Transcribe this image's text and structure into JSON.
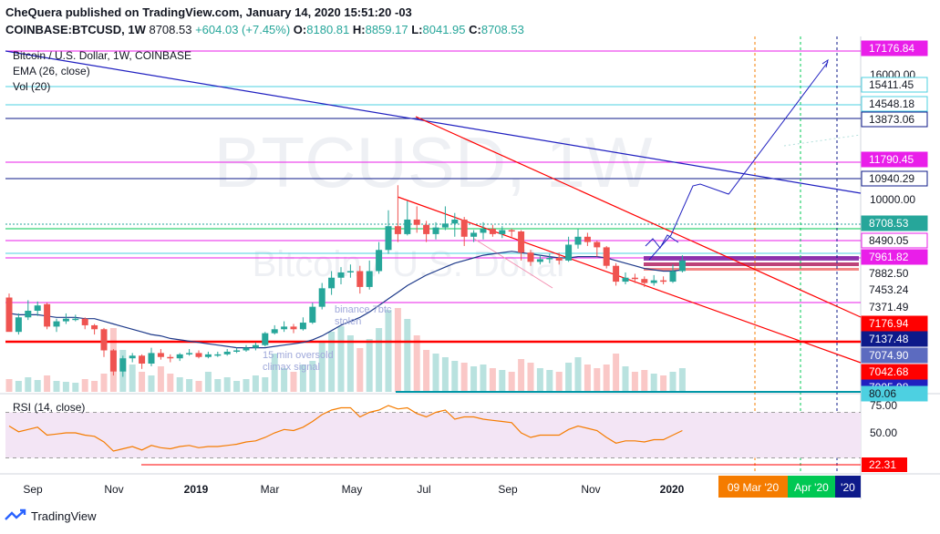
{
  "header": {
    "publisher_line": "CheQuera published on TradingView.com, January 14, 2020 15:51:20 -03",
    "symbol": "COINBASE:BTCUSD, 1W",
    "last": "8708.53",
    "change": "+604.03 (+7.45%)",
    "ohlc": [
      {
        "k": "O:",
        "v": "8180.81"
      },
      {
        "k": "H:",
        "v": "8859.17"
      },
      {
        "k": "L:",
        "v": "8041.95"
      },
      {
        "k": "C:",
        "v": "8708.53"
      }
    ]
  },
  "legend": {
    "title": "Bitcoin / U.S. Dollar, 1W, COINBASE",
    "ema": "EMA (26, close)",
    "vol": "Vol (20)",
    "rsi": "RSI (14, close)"
  },
  "watermark": {
    "big": "BTCUSD, 1W",
    "small": "Bitcoin / U.S. Dollar"
  },
  "annotations": {
    "binance": "binance 7btc\nstolen",
    "oversold": "15 min oversold\nclimax signal"
  },
  "footer": {
    "brand": "TradingView"
  },
  "colors": {
    "up": "#26a69a",
    "down": "#ef5350",
    "ema": "#1e3a8a",
    "magenta": "#e91ee9",
    "cyan": "#4dd0e1",
    "navy": "#0d1a8a",
    "red": "#ff0000",
    "blue_line": "#2020c0",
    "rsi_line": "#f57c00",
    "rsi_band": "#f3e5f5"
  },
  "chart_data": {
    "type": "line",
    "title": "Bitcoin / U.S. Dollar, 1W, COINBASE",
    "xlabel": "",
    "ylabel": "",
    "x_ticks": [
      "Sep",
      "Nov",
      "2019",
      "Mar",
      "May",
      "Jul",
      "Sep",
      "Nov",
      "2020"
    ],
    "price_ticks": [
      "16000.00",
      "10000.00"
    ],
    "price_labels": [
      {
        "value": "17176.84",
        "color": "#e91ee9",
        "text": "#ffffff"
      },
      {
        "value": "15411.45",
        "color": "#ffffff",
        "text": "#131722",
        "border": "#4dd0e1"
      },
      {
        "value": "14548.18",
        "color": "#ffffff",
        "text": "#131722",
        "border": "#4dd0e1"
      },
      {
        "value": "13873.06",
        "color": "#ffffff",
        "text": "#131722",
        "border": "#0d1a8a"
      },
      {
        "value": "11790.45",
        "color": "#e91ee9",
        "text": "#ffffff"
      },
      {
        "value": "10940.29",
        "color": "#ffffff",
        "text": "#131722",
        "border": "#0d1a8a"
      },
      {
        "value": "8708.53",
        "color": "#26a69a",
        "text": "#ffffff"
      },
      {
        "value": "8490.05",
        "color": "#ffffff",
        "text": "#131722",
        "border": "#e91ee9"
      },
      {
        "value": "7961.82",
        "color": "#e91ee9",
        "text": "#ffffff"
      },
      {
        "value": "7882.50",
        "color": "#ffffff",
        "text": "#131722"
      },
      {
        "value": "7453.24",
        "color": "#ffffff",
        "text": "#131722"
      },
      {
        "value": "7371.49",
        "color": "#ffffff",
        "text": "#131722"
      },
      {
        "value": "7176.94",
        "color": "#ff0000",
        "text": "#ffffff"
      },
      {
        "value": "7137.48",
        "color": "#0d1a8a",
        "text": "#ffffff"
      },
      {
        "value": "7074.90",
        "color": "#5c6bc0",
        "text": "#ffffff"
      },
      {
        "value": "7042.68",
        "color": "#ff0000",
        "text": "#ffffff"
      },
      {
        "value": "7005.98",
        "color": "#2020c0",
        "text": "#ffffff"
      },
      {
        "value": "80.06",
        "color": "#4dd0e1",
        "text": "#131722"
      }
    ],
    "rsi_ticks": [
      "75.00",
      "50.00"
    ],
    "rsi_label": {
      "value": "22.31",
      "color": "#ff0000",
      "text": "#ffffff"
    },
    "date_tags": [
      {
        "label": "09 Mar '20",
        "color": "#f57c00"
      },
      {
        "label": "Apr '20",
        "color": "#00c853"
      },
      {
        "label": "'20",
        "color": "#0d1a8a"
      }
    ],
    "candles": [
      [
        3.0,
        0.4,
        3.3,
        2.8
      ],
      [
        0.4,
        1.5,
        1.8,
        0.2
      ],
      [
        1.5,
        2.0,
        2.8,
        1.3
      ],
      [
        2.0,
        2.4,
        2.7,
        1.6
      ],
      [
        2.5,
        0.8,
        2.6,
        0.6
      ],
      [
        0.8,
        1.2,
        1.4,
        0.4
      ],
      [
        1.2,
        1.4,
        1.8,
        1.0
      ],
      [
        1.4,
        1.4,
        1.7,
        1.2
      ],
      [
        1.4,
        0.9,
        1.5,
        0.6
      ],
      [
        0.9,
        0.6,
        1.0,
        0.2
      ],
      [
        0.6,
        -1.0,
        0.7,
        -1.5
      ],
      [
        -1.0,
        -2.6,
        -0.9,
        -2.9
      ],
      [
        -2.6,
        -1.6,
        -1.4,
        -3.0
      ],
      [
        -1.6,
        -1.4,
        -1.2,
        -1.9
      ],
      [
        -1.4,
        -2.0,
        -1.3,
        -2.4
      ],
      [
        -2.0,
        -1.2,
        -0.8,
        -2.2
      ],
      [
        -1.2,
        -1.5,
        -0.9,
        -1.7
      ],
      [
        -1.5,
        -1.6,
        -1.3,
        -1.9
      ],
      [
        -1.6,
        -1.3,
        -1.2,
        -1.8
      ],
      [
        -1.3,
        -1.2,
        -0.9,
        -1.4
      ],
      [
        -1.2,
        -1.5,
        -1.0,
        -1.6
      ],
      [
        -1.5,
        -1.3,
        -1.1,
        -1.6
      ],
      [
        -1.3,
        -1.3,
        -1.1,
        -1.5
      ],
      [
        -1.3,
        -1.1,
        -0.9,
        -1.4
      ],
      [
        -1.1,
        -1.0,
        -0.8,
        -1.2
      ],
      [
        -1.0,
        -0.8,
        -0.6,
        -1.1
      ],
      [
        -0.8,
        -0.6,
        -0.4,
        -1.0
      ],
      [
        -0.6,
        0.3,
        0.4,
        -0.7
      ],
      [
        0.3,
        0.6,
        0.9,
        0.2
      ],
      [
        0.6,
        0.8,
        1.2,
        0.4
      ],
      [
        0.8,
        0.6,
        1.0,
        0.3
      ],
      [
        0.6,
        1.1,
        1.5,
        0.5
      ],
      [
        1.1,
        2.3,
        2.6,
        1.0
      ],
      [
        2.3,
        3.7,
        4.1,
        2.1
      ],
      [
        3.7,
        4.5,
        5.0,
        3.2
      ],
      [
        4.5,
        4.9,
        5.3,
        4.0
      ],
      [
        4.9,
        5.0,
        5.5,
        4.5
      ],
      [
        5.0,
        3.8,
        5.4,
        3.3
      ],
      [
        3.8,
        5.0,
        5.8,
        3.6
      ],
      [
        5.0,
        6.6,
        7.2,
        4.8
      ],
      [
        6.6,
        8.4,
        9.6,
        6.3
      ],
      [
        8.4,
        7.8,
        11.5,
        7.2
      ],
      [
        7.8,
        8.9,
        10.3,
        7.7
      ],
      [
        8.9,
        8.5,
        9.9,
        7.9
      ],
      [
        8.5,
        7.8,
        8.8,
        7.2
      ],
      [
        7.8,
        8.3,
        8.7,
        7.4
      ],
      [
        8.3,
        8.6,
        9.9,
        8.1
      ],
      [
        8.6,
        8.9,
        9.4,
        7.6
      ],
      [
        8.9,
        7.6,
        9.1,
        6.9
      ],
      [
        7.6,
        7.9,
        8.1,
        7.2
      ],
      [
        7.9,
        8.2,
        8.7,
        7.4
      ],
      [
        8.2,
        7.8,
        8.5,
        7.6
      ],
      [
        7.8,
        8.1,
        8.4,
        7.5
      ],
      [
        8.1,
        8.0,
        8.2,
        7.6
      ],
      [
        8.0,
        6.4,
        8.1,
        5.8
      ],
      [
        6.4,
        5.7,
        6.6,
        5.4
      ],
      [
        5.7,
        5.9,
        6.2,
        5.5
      ],
      [
        5.9,
        6.0,
        6.3,
        5.6
      ],
      [
        6.0,
        5.8,
        6.4,
        5.5
      ],
      [
        5.8,
        7.0,
        7.6,
        5.7
      ],
      [
        7.0,
        7.6,
        8.2,
        6.7
      ],
      [
        7.6,
        7.2,
        7.9,
        6.9
      ],
      [
        7.2,
        6.8,
        7.3,
        6.1
      ],
      [
        6.8,
        5.4,
        6.9,
        5.2
      ],
      [
        5.4,
        4.2,
        5.6,
        3.9
      ],
      [
        4.2,
        4.5,
        4.9,
        4.0
      ],
      [
        4.5,
        4.4,
        4.8,
        4.1
      ],
      [
        4.4,
        4.1,
        4.6,
        3.8
      ],
      [
        4.1,
        4.3,
        4.7,
        3.9
      ],
      [
        4.3,
        4.2,
        4.6,
        4.0
      ],
      [
        4.2,
        5.0,
        5.5,
        4.1
      ],
      [
        5.0,
        5.8,
        6.2,
        4.9
      ]
    ],
    "ema_values": [
      1.8,
      1.7,
      1.7,
      1.7,
      1.6,
      1.5,
      1.5,
      1.5,
      1.4,
      1.4,
      1.2,
      1.0,
      0.8,
      0.6,
      0.4,
      0.2,
      0.1,
      -0.1,
      -0.2,
      -0.3,
      -0.4,
      -0.5,
      -0.6,
      -0.7,
      -0.8,
      -0.8,
      -0.8,
      -0.8,
      -0.7,
      -0.6,
      -0.5,
      -0.4,
      -0.2,
      0.1,
      0.5,
      0.9,
      1.2,
      1.5,
      1.9,
      2.4,
      2.9,
      3.4,
      3.9,
      4.3,
      4.7,
      5.0,
      5.3,
      5.6,
      5.8,
      6.0,
      6.2,
      6.3,
      6.4,
      6.5,
      6.4,
      6.3,
      6.2,
      6.1,
      6.0,
      6.0,
      6.1,
      6.1,
      6.1,
      6.0,
      5.8,
      5.6,
      5.4,
      5.2,
      5.1,
      5.0,
      5.0,
      5.1
    ],
    "volume": [
      14,
      12,
      16,
      13,
      18,
      12,
      11,
      10,
      14,
      12,
      20,
      70,
      46,
      30,
      22,
      18,
      28,
      20,
      16,
      14,
      12,
      22,
      14,
      16,
      12,
      14,
      18,
      16,
      42,
      26,
      22,
      30,
      34,
      54,
      66,
      72,
      62,
      48,
      58,
      70,
      90,
      92,
      80,
      62,
      46,
      42,
      38,
      34,
      32,
      28,
      30,
      26,
      24,
      22,
      36,
      32,
      26,
      24,
      22,
      32,
      38,
      30,
      26,
      30,
      42,
      28,
      22,
      24,
      20,
      18,
      22,
      26
    ],
    "rsi": [
      58,
      53,
      55,
      57,
      50,
      51,
      52,
      52,
      50,
      49,
      44,
      36,
      38,
      40,
      37,
      41,
      39,
      38,
      40,
      41,
      39,
      40,
      40,
      41,
      42,
      44,
      45,
      48,
      52,
      55,
      54,
      57,
      62,
      68,
      72,
      74,
      74,
      66,
      70,
      72,
      76,
      73,
      74,
      69,
      66,
      70,
      72,
      64,
      66,
      66,
      64,
      63,
      62,
      61,
      52,
      48,
      50,
      50,
      50,
      55,
      58,
      56,
      54,
      48,
      43,
      45,
      45,
      44,
      46,
      46,
      50,
      54
    ],
    "rsi_levels": {
      "upper": 70,
      "lower": 30
    }
  }
}
